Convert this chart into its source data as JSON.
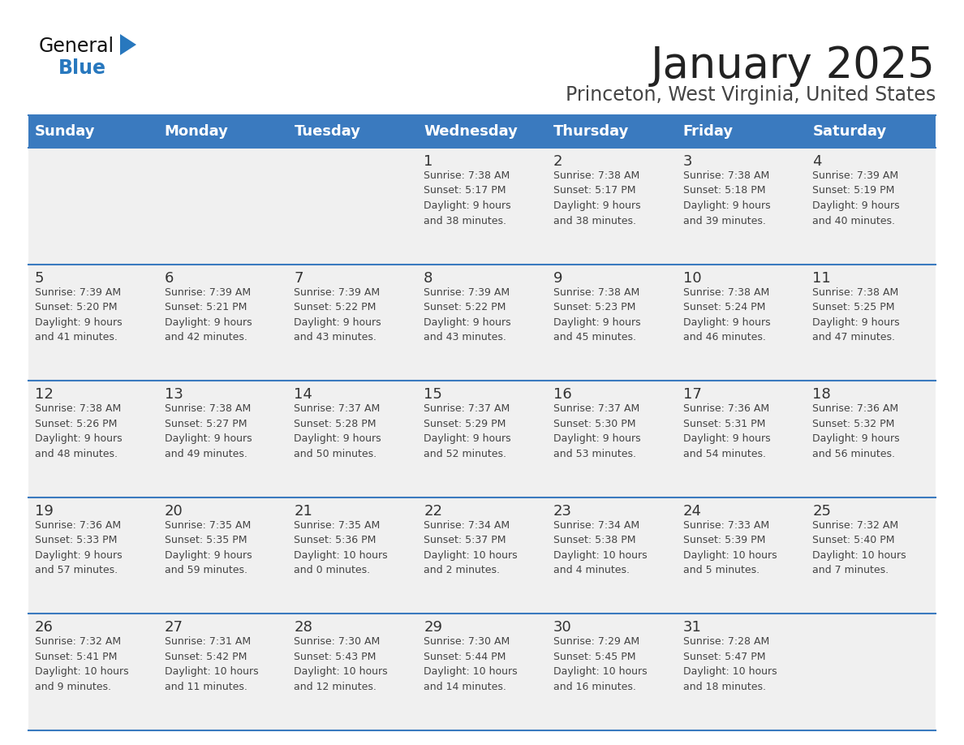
{
  "title": "January 2025",
  "subtitle": "Princeton, West Virginia, United States",
  "days_of_week": [
    "Sunday",
    "Monday",
    "Tuesday",
    "Wednesday",
    "Thursday",
    "Friday",
    "Saturday"
  ],
  "header_bg": "#3a7abf",
  "header_text": "#ffffff",
  "row_bg": "#f0f0f0",
  "border_color": "#3a7abf",
  "day_number_color": "#333333",
  "cell_text_color": "#444444",
  "title_color": "#222222",
  "subtitle_color": "#444444",
  "logo_text_color": "#111111",
  "logo_blue_color": "#2878be",
  "logo_triangle_color": "#2878be",
  "calendar_data": [
    [
      {
        "day": null,
        "info": null
      },
      {
        "day": null,
        "info": null
      },
      {
        "day": null,
        "info": null
      },
      {
        "day": 1,
        "info": "Sunrise: 7:38 AM\nSunset: 5:17 PM\nDaylight: 9 hours\nand 38 minutes."
      },
      {
        "day": 2,
        "info": "Sunrise: 7:38 AM\nSunset: 5:17 PM\nDaylight: 9 hours\nand 38 minutes."
      },
      {
        "day": 3,
        "info": "Sunrise: 7:38 AM\nSunset: 5:18 PM\nDaylight: 9 hours\nand 39 minutes."
      },
      {
        "day": 4,
        "info": "Sunrise: 7:39 AM\nSunset: 5:19 PM\nDaylight: 9 hours\nand 40 minutes."
      }
    ],
    [
      {
        "day": 5,
        "info": "Sunrise: 7:39 AM\nSunset: 5:20 PM\nDaylight: 9 hours\nand 41 minutes."
      },
      {
        "day": 6,
        "info": "Sunrise: 7:39 AM\nSunset: 5:21 PM\nDaylight: 9 hours\nand 42 minutes."
      },
      {
        "day": 7,
        "info": "Sunrise: 7:39 AM\nSunset: 5:22 PM\nDaylight: 9 hours\nand 43 minutes."
      },
      {
        "day": 8,
        "info": "Sunrise: 7:39 AM\nSunset: 5:22 PM\nDaylight: 9 hours\nand 43 minutes."
      },
      {
        "day": 9,
        "info": "Sunrise: 7:38 AM\nSunset: 5:23 PM\nDaylight: 9 hours\nand 45 minutes."
      },
      {
        "day": 10,
        "info": "Sunrise: 7:38 AM\nSunset: 5:24 PM\nDaylight: 9 hours\nand 46 minutes."
      },
      {
        "day": 11,
        "info": "Sunrise: 7:38 AM\nSunset: 5:25 PM\nDaylight: 9 hours\nand 47 minutes."
      }
    ],
    [
      {
        "day": 12,
        "info": "Sunrise: 7:38 AM\nSunset: 5:26 PM\nDaylight: 9 hours\nand 48 minutes."
      },
      {
        "day": 13,
        "info": "Sunrise: 7:38 AM\nSunset: 5:27 PM\nDaylight: 9 hours\nand 49 minutes."
      },
      {
        "day": 14,
        "info": "Sunrise: 7:37 AM\nSunset: 5:28 PM\nDaylight: 9 hours\nand 50 minutes."
      },
      {
        "day": 15,
        "info": "Sunrise: 7:37 AM\nSunset: 5:29 PM\nDaylight: 9 hours\nand 52 minutes."
      },
      {
        "day": 16,
        "info": "Sunrise: 7:37 AM\nSunset: 5:30 PM\nDaylight: 9 hours\nand 53 minutes."
      },
      {
        "day": 17,
        "info": "Sunrise: 7:36 AM\nSunset: 5:31 PM\nDaylight: 9 hours\nand 54 minutes."
      },
      {
        "day": 18,
        "info": "Sunrise: 7:36 AM\nSunset: 5:32 PM\nDaylight: 9 hours\nand 56 minutes."
      }
    ],
    [
      {
        "day": 19,
        "info": "Sunrise: 7:36 AM\nSunset: 5:33 PM\nDaylight: 9 hours\nand 57 minutes."
      },
      {
        "day": 20,
        "info": "Sunrise: 7:35 AM\nSunset: 5:35 PM\nDaylight: 9 hours\nand 59 minutes."
      },
      {
        "day": 21,
        "info": "Sunrise: 7:35 AM\nSunset: 5:36 PM\nDaylight: 10 hours\nand 0 minutes."
      },
      {
        "day": 22,
        "info": "Sunrise: 7:34 AM\nSunset: 5:37 PM\nDaylight: 10 hours\nand 2 minutes."
      },
      {
        "day": 23,
        "info": "Sunrise: 7:34 AM\nSunset: 5:38 PM\nDaylight: 10 hours\nand 4 minutes."
      },
      {
        "day": 24,
        "info": "Sunrise: 7:33 AM\nSunset: 5:39 PM\nDaylight: 10 hours\nand 5 minutes."
      },
      {
        "day": 25,
        "info": "Sunrise: 7:32 AM\nSunset: 5:40 PM\nDaylight: 10 hours\nand 7 minutes."
      }
    ],
    [
      {
        "day": 26,
        "info": "Sunrise: 7:32 AM\nSunset: 5:41 PM\nDaylight: 10 hours\nand 9 minutes."
      },
      {
        "day": 27,
        "info": "Sunrise: 7:31 AM\nSunset: 5:42 PM\nDaylight: 10 hours\nand 11 minutes."
      },
      {
        "day": 28,
        "info": "Sunrise: 7:30 AM\nSunset: 5:43 PM\nDaylight: 10 hours\nand 12 minutes."
      },
      {
        "day": 29,
        "info": "Sunrise: 7:30 AM\nSunset: 5:44 PM\nDaylight: 10 hours\nand 14 minutes."
      },
      {
        "day": 30,
        "info": "Sunrise: 7:29 AM\nSunset: 5:45 PM\nDaylight: 10 hours\nand 16 minutes."
      },
      {
        "day": 31,
        "info": "Sunrise: 7:28 AM\nSunset: 5:47 PM\nDaylight: 10 hours\nand 18 minutes."
      },
      {
        "day": null,
        "info": null
      }
    ]
  ]
}
